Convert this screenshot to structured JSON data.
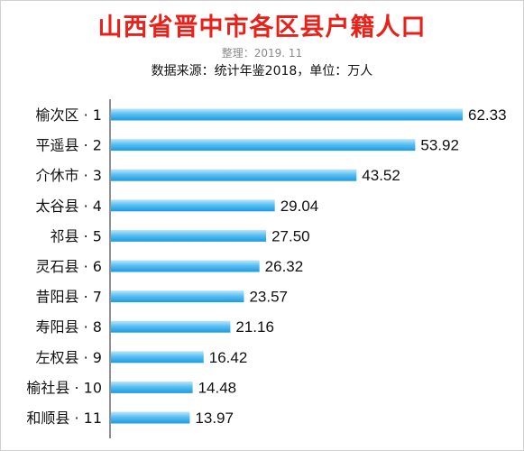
{
  "header": {
    "title": "山西省晋中市各区县户籍人口",
    "compiled": "整理：2019. 11",
    "source": "数据来源：统计年鉴2018，单位：万人"
  },
  "colors": {
    "title": "#e8211a",
    "bar_light": "#bfe6fb",
    "bar_dark": "#1b9be0"
  },
  "chart_data": {
    "type": "bar",
    "orientation": "horizontal",
    "title": "山西省晋中市各区县户籍人口",
    "subtitle": "数据来源：统计年鉴2018，单位：万人",
    "categories": [
      "榆次区 · 1",
      "平遥县 · 2",
      "介休市 · 3",
      "太谷县 · 4",
      "祁县 · 5",
      "灵石县 · 6",
      "昔阳县 · 7",
      "寿阳县 · 8",
      "左权县 · 9",
      "榆社县 · 10",
      "和顺县 · 11"
    ],
    "values": [
      62.33,
      53.92,
      43.52,
      29.04,
      27.5,
      26.32,
      23.57,
      21.16,
      16.42,
      14.48,
      13.97
    ],
    "value_labels": [
      "62.33",
      "53.92",
      "43.52",
      "29.04",
      "27.50",
      "26.32",
      "23.57",
      "21.16",
      "16.42",
      "14.48",
      "13.97"
    ],
    "xlim": [
      0,
      62.33
    ],
    "grid": false,
    "legend": "none"
  }
}
